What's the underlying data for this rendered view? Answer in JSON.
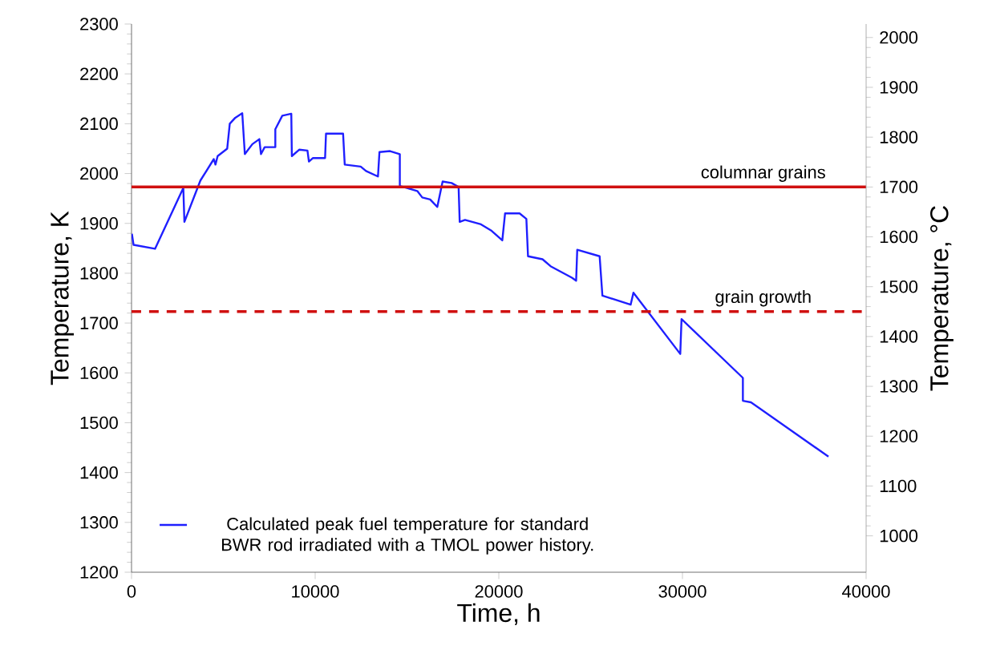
{
  "chart_data": {
    "type": "line",
    "xlabel": "Time, h",
    "ylabel": "Temperature, K",
    "y2label": "Temperature, °C",
    "xlim": [
      0,
      40000
    ],
    "xticks": [
      0,
      10000,
      20000,
      30000,
      40000
    ],
    "ylim": [
      1200,
      2300
    ],
    "yticks": [
      1200,
      1300,
      1400,
      1500,
      1600,
      1700,
      1800,
      1900,
      2000,
      2100,
      2200,
      2300
    ],
    "y2lim": [
      927,
      2027
    ],
    "y2ticks": [
      1000,
      1100,
      1200,
      1300,
      1400,
      1500,
      1600,
      1700,
      1800,
      1900,
      2000
    ],
    "grid": false,
    "legend": "bottom left",
    "marker": "none",
    "line_style": "solid",
    "ref_lines": [
      {
        "axis": "y",
        "value": 1973,
        "label": "columnar grains",
        "color": "#d01010",
        "line_style": "solid"
      },
      {
        "axis": "y",
        "value": 1723,
        "label": "grain growth",
        "color": "#d01010",
        "line_style": "dashed"
      }
    ],
    "series": [
      {
        "name": "Calculated peak fuel temperature for standard BWR rod irradiated with a TMOL power history.",
        "color": "#1f1fff",
        "x": [
          20,
          110,
          1280,
          2820,
          2880,
          3750,
          4480,
          4570,
          4690,
          5210,
          5350,
          5650,
          6030,
          6170,
          6580,
          6960,
          7050,
          7250,
          7830,
          7830,
          8210,
          8700,
          8730,
          9140,
          9580,
          9660,
          9870,
          10540,
          10590,
          11520,
          11610,
          12480,
          12770,
          13420,
          13500,
          14080,
          14610,
          14610,
          15560,
          15830,
          16260,
          16650,
          16940,
          17430,
          17810,
          17870,
          18160,
          19030,
          19610,
          20190,
          20340,
          21130,
          21500,
          21590,
          22380,
          22820,
          23980,
          24210,
          24270,
          25490,
          25640,
          27180,
          27330,
          29880,
          29950,
          33290,
          33290,
          33730,
          37950
        ],
        "values": [
          1879,
          1857,
          1849,
          1971,
          1903,
          1986,
          2029,
          2018,
          2035,
          2050,
          2100,
          2112,
          2121,
          2039,
          2059,
          2069,
          2039,
          2053,
          2053,
          2089,
          2116,
          2120,
          2035,
          2048,
          2046,
          2024,
          2031,
          2031,
          2080,
          2080,
          2018,
          2014,
          2005,
          1994,
          2043,
          2045,
          2039,
          1975,
          1965,
          1952,
          1948,
          1933,
          1984,
          1981,
          1973,
          1903,
          1907,
          1898,
          1885,
          1866,
          1920,
          1920,
          1909,
          1834,
          1828,
          1814,
          1791,
          1785,
          1847,
          1834,
          1755,
          1737,
          1761,
          1638,
          1708,
          1590,
          1544,
          1541,
          1432
        ]
      }
    ]
  }
}
